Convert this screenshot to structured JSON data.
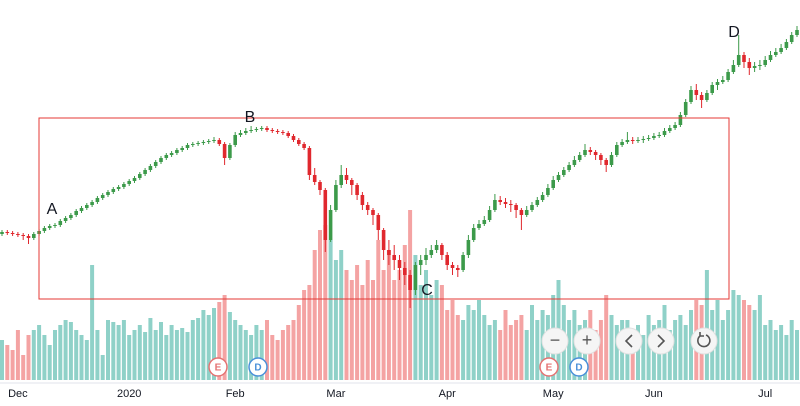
{
  "chart_data": {
    "type": "candlestick",
    "categories": [
      null,
      null,
      null,
      "Dec",
      null,
      null,
      null,
      null,
      null,
      null,
      null,
      null,
      null,
      null,
      null,
      null,
      null,
      null,
      null,
      null,
      null,
      null,
      null,
      null,
      "2020",
      null,
      null,
      null,
      null,
      null,
      null,
      null,
      null,
      null,
      null,
      null,
      null,
      null,
      null,
      null,
      null,
      null,
      null,
      null,
      "Feb",
      null,
      null,
      null,
      null,
      null,
      null,
      null,
      null,
      null,
      null,
      null,
      null,
      null,
      null,
      null,
      null,
      null,
      null,
      "Mar",
      null,
      null,
      null,
      null,
      null,
      null,
      null,
      null,
      null,
      null,
      null,
      null,
      null,
      null,
      null,
      null,
      null,
      null,
      null,
      null,
      "Apr",
      null,
      null,
      null,
      null,
      null,
      null,
      null,
      null,
      null,
      null,
      null,
      null,
      null,
      null,
      null,
      null,
      null,
      null,
      null,
      "May",
      null,
      null,
      null,
      null,
      null,
      null,
      null,
      null,
      null,
      null,
      null,
      null,
      null,
      null,
      null,
      null,
      null,
      null,
      "Jun",
      null,
      null,
      null,
      null,
      null,
      null,
      null,
      null,
      null,
      null,
      null,
      null,
      null,
      null,
      null,
      null,
      null,
      null,
      null,
      null,
      "Jul",
      null,
      null,
      null,
      null,
      null,
      null
    ],
    "ohlc": [
      [
        146,
        150,
        144,
        148
      ],
      [
        148,
        150,
        145,
        147
      ],
      [
        147,
        149,
        144,
        146
      ],
      [
        146,
        148,
        143,
        145
      ],
      [
        145,
        147,
        140,
        144
      ],
      [
        144,
        146,
        136,
        142
      ],
      [
        142,
        148,
        140,
        146
      ],
      [
        146,
        151,
        144,
        149
      ],
      [
        149,
        154,
        147,
        152
      ],
      [
        152,
        156,
        150,
        154
      ],
      [
        154,
        157,
        152,
        155
      ],
      [
        155,
        161,
        153,
        159
      ],
      [
        159,
        164,
        157,
        162
      ],
      [
        162,
        167,
        160,
        165
      ],
      [
        165,
        171,
        163,
        169
      ],
      [
        169,
        174,
        167,
        172
      ],
      [
        172,
        177,
        170,
        175
      ],
      [
        175,
        180,
        173,
        178
      ],
      [
        178,
        184,
        176,
        182
      ],
      [
        182,
        187,
        180,
        185
      ],
      [
        185,
        190,
        183,
        188
      ],
      [
        188,
        193,
        186,
        191
      ],
      [
        191,
        195,
        189,
        193
      ],
      [
        193,
        198,
        191,
        196
      ],
      [
        196,
        201,
        194,
        199
      ],
      [
        199,
        204,
        197,
        202
      ],
      [
        202,
        208,
        200,
        206
      ],
      [
        206,
        212,
        204,
        210
      ],
      [
        210,
        216,
        208,
        214
      ],
      [
        214,
        220,
        212,
        218
      ],
      [
        218,
        224,
        216,
        222
      ],
      [
        222,
        227,
        220,
        225
      ],
      [
        225,
        229,
        223,
        227
      ],
      [
        227,
        232,
        225,
        230
      ],
      [
        230,
        234,
        228,
        232
      ],
      [
        232,
        237,
        230,
        235
      ],
      [
        235,
        238,
        233,
        236
      ],
      [
        236,
        239,
        234,
        237
      ],
      [
        237,
        240,
        235,
        238
      ],
      [
        238,
        241,
        236,
        239
      ],
      [
        239,
        243,
        237,
        240
      ],
      [
        240,
        242,
        234,
        236
      ],
      [
        236,
        238,
        215,
        222
      ],
      [
        222,
        237,
        220,
        235
      ],
      [
        235,
        248,
        233,
        245
      ],
      [
        245,
        250,
        243,
        247
      ],
      [
        247,
        252,
        245,
        249
      ],
      [
        249,
        254,
        247,
        250
      ],
      [
        250,
        253,
        248,
        251
      ],
      [
        251,
        254,
        249,
        252
      ],
      [
        252,
        254,
        248,
        250
      ],
      [
        250,
        252,
        247,
        249
      ],
      [
        249,
        251,
        246,
        248
      ],
      [
        248,
        250,
        245,
        247
      ],
      [
        247,
        249,
        242,
        244
      ],
      [
        244,
        246,
        238,
        240
      ],
      [
        240,
        242,
        234,
        236
      ],
      [
        236,
        238,
        230,
        232
      ],
      [
        232,
        234,
        200,
        205
      ],
      [
        205,
        212,
        195,
        198
      ],
      [
        198,
        200,
        185,
        190
      ],
      [
        190,
        192,
        128,
        140
      ],
      [
        140,
        175,
        138,
        170
      ],
      [
        170,
        200,
        168,
        195
      ],
      [
        195,
        215,
        192,
        205
      ],
      [
        205,
        212,
        196,
        200
      ],
      [
        200,
        202,
        185,
        195
      ],
      [
        195,
        197,
        180,
        185
      ],
      [
        185,
        188,
        170,
        175
      ],
      [
        175,
        178,
        165,
        170
      ],
      [
        170,
        172,
        155,
        165
      ],
      [
        165,
        167,
        140,
        150
      ],
      [
        150,
        152,
        120,
        130
      ],
      [
        130,
        140,
        115,
        125
      ],
      [
        125,
        135,
        110,
        120
      ],
      [
        120,
        125,
        100,
        112
      ],
      [
        112,
        118,
        95,
        105
      ],
      [
        105,
        110,
        72,
        90
      ],
      [
        90,
        118,
        85,
        115
      ],
      [
        115,
        125,
        105,
        120
      ],
      [
        120,
        132,
        115,
        125
      ],
      [
        125,
        135,
        122,
        130
      ],
      [
        130,
        140,
        127,
        135
      ],
      [
        135,
        137,
        120,
        125
      ],
      [
        125,
        128,
        110,
        115
      ],
      [
        115,
        118,
        105,
        112
      ],
      [
        112,
        115,
        103,
        110
      ],
      [
        110,
        128,
        108,
        125
      ],
      [
        125,
        145,
        122,
        140
      ],
      [
        140,
        156,
        138,
        152
      ],
      [
        152,
        160,
        150,
        156
      ],
      [
        156,
        164,
        154,
        160
      ],
      [
        160,
        174,
        158,
        170
      ],
      [
        170,
        186,
        168,
        180
      ],
      [
        180,
        184,
        175,
        178
      ],
      [
        178,
        182,
        172,
        176
      ],
      [
        176,
        180,
        168,
        175
      ],
      [
        175,
        177,
        162,
        170
      ],
      [
        170,
        172,
        150,
        165
      ],
      [
        165,
        174,
        163,
        170
      ],
      [
        170,
        178,
        168,
        175
      ],
      [
        175,
        183,
        173,
        180
      ],
      [
        180,
        188,
        178,
        185
      ],
      [
        185,
        196,
        183,
        192
      ],
      [
        192,
        204,
        190,
        200
      ],
      [
        200,
        208,
        198,
        205
      ],
      [
        205,
        213,
        203,
        210
      ],
      [
        210,
        218,
        208,
        215
      ],
      [
        215,
        224,
        213,
        220
      ],
      [
        220,
        228,
        218,
        225
      ],
      [
        225,
        236,
        223,
        230
      ],
      [
        230,
        233,
        225,
        228
      ],
      [
        228,
        230,
        220,
        225
      ],
      [
        225,
        227,
        215,
        220
      ],
      [
        220,
        222,
        208,
        215
      ],
      [
        215,
        228,
        213,
        225
      ],
      [
        225,
        238,
        223,
        235
      ],
      [
        235,
        241,
        233,
        238
      ],
      [
        238,
        248,
        236,
        240
      ],
      [
        240,
        243,
        236,
        239
      ],
      [
        239,
        243,
        237,
        240
      ],
      [
        240,
        244,
        237,
        241
      ],
      [
        241,
        245,
        239,
        242
      ],
      [
        242,
        247,
        240,
        244
      ],
      [
        244,
        248,
        242,
        245
      ],
      [
        245,
        252,
        243,
        249
      ],
      [
        249,
        255,
        247,
        252
      ],
      [
        252,
        258,
        250,
        255
      ],
      [
        255,
        268,
        253,
        265
      ],
      [
        265,
        281,
        263,
        278
      ],
      [
        278,
        294,
        276,
        290
      ],
      [
        290,
        296,
        280,
        285
      ],
      [
        285,
        288,
        272,
        280
      ],
      [
        280,
        290,
        278,
        287
      ],
      [
        287,
        298,
        285,
        295
      ],
      [
        295,
        301,
        290,
        298
      ],
      [
        298,
        304,
        296,
        300
      ],
      [
        300,
        311,
        298,
        308
      ],
      [
        308,
        320,
        306,
        315
      ],
      [
        315,
        345,
        313,
        325
      ],
      [
        325,
        328,
        312,
        318
      ],
      [
        318,
        322,
        305,
        312
      ],
      [
        312,
        318,
        308,
        314
      ],
      [
        314,
        320,
        310,
        315
      ],
      [
        315,
        324,
        313,
        320
      ],
      [
        320,
        329,
        318,
        325
      ],
      [
        325,
        332,
        323,
        328
      ],
      [
        328,
        336,
        326,
        332
      ],
      [
        332,
        341,
        330,
        338
      ],
      [
        338,
        348,
        336,
        345
      ],
      [
        345,
        354,
        343,
        350
      ]
    ],
    "volume": [
      40,
      35,
      30,
      50,
      25,
      45,
      50,
      55,
      45,
      35,
      50,
      55,
      60,
      58,
      50,
      45,
      40,
      115,
      50,
      25,
      60,
      58,
      55,
      60,
      45,
      50,
      55,
      48,
      62,
      50,
      58,
      45,
      55,
      50,
      52,
      48,
      60,
      62,
      70,
      65,
      72,
      78,
      85,
      68,
      60,
      55,
      50,
      45,
      55,
      50,
      60,
      45,
      40,
      50,
      55,
      60,
      75,
      90,
      95,
      130,
      150,
      155,
      140,
      120,
      130,
      110,
      100,
      115,
      95,
      120,
      100,
      140,
      110,
      130,
      100,
      110,
      135,
      170,
      125,
      95,
      110,
      85,
      100,
      95,
      70,
      80,
      65,
      60,
      75,
      70,
      80,
      65,
      55,
      60,
      50,
      70,
      55,
      60,
      65,
      50,
      75,
      60,
      70,
      65,
      85,
      100,
      75,
      60,
      70,
      55,
      60,
      70,
      50,
      60,
      85,
      65,
      55,
      60,
      60,
      50,
      55,
      45,
      65,
      55,
      60,
      75,
      50,
      60,
      65,
      55,
      70,
      80,
      75,
      110,
      70,
      80,
      60,
      70,
      90,
      85,
      80,
      75,
      70,
      85,
      55,
      60,
      50,
      55,
      45,
      60,
      50
    ],
    "up_color": "#3c9a4a",
    "down_color": "#e0282e",
    "volume_up_color": "#8fd1c8",
    "volume_down_color": "#f4a3a3",
    "ylim": [
      0,
      380
    ],
    "y2lim": [
      0,
      380
    ],
    "annotations": [
      "A",
      "B",
      "C",
      "D"
    ],
    "events": [
      "E",
      "D",
      "E",
      "D"
    ],
    "controls": [
      "−",
      "+"
    ]
  }
}
